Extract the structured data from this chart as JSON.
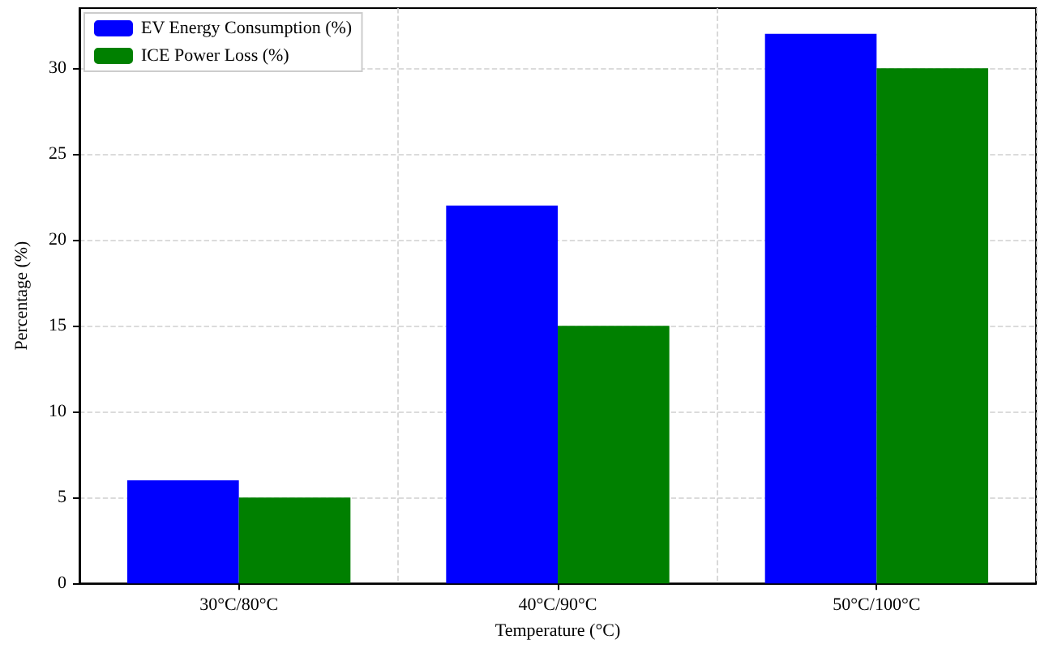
{
  "chart_data": {
    "type": "bar",
    "xlabel": "Temperature (°C)",
    "ylabel": "Percentage (%)",
    "categories": [
      "30°C/80°C",
      "40°C/90°C",
      "50°C/100°C"
    ],
    "series": [
      {
        "name": "EV Energy Consumption (%)",
        "color": "#0000ff",
        "values": [
          6,
          22,
          32
        ]
      },
      {
        "name": "ICE Power Loss (%)",
        "color": "#008000",
        "values": [
          5,
          15,
          30
        ]
      }
    ],
    "ylim": [
      0,
      33.5
    ],
    "yticks": [
      0,
      5,
      10,
      15,
      20,
      25,
      30
    ],
    "grid": true,
    "legend": "top left"
  }
}
